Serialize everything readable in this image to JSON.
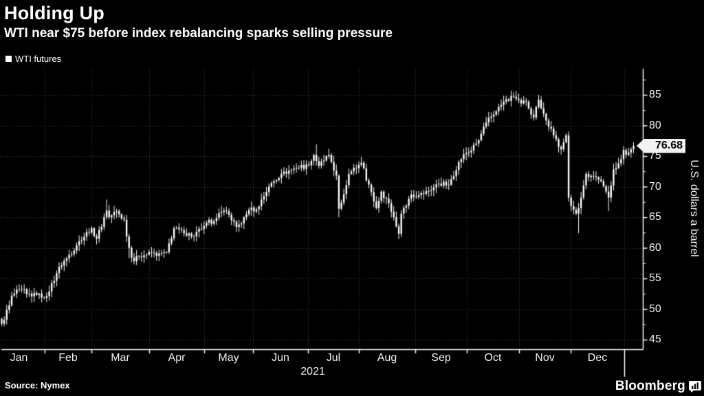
{
  "page": {
    "background": "#000000"
  },
  "header": {
    "title": "Holding Up",
    "subtitle": "WTI near $75 before index rebalancing sparks selling pressure"
  },
  "legend": {
    "items": [
      {
        "label": "WTI futures",
        "swatch_color": "#ffffff"
      }
    ]
  },
  "chart_data": {
    "type": "candlestick",
    "title": "Holding Up",
    "series_name": "WTI futures",
    "ylabel": "U.S. dollars a barrel",
    "xlabel": "2021",
    "x_axis": {
      "months": [
        "Jan",
        "Feb",
        "Mar",
        "Apr",
        "May",
        "Jun",
        "Jul",
        "Aug",
        "Sep",
        "Oct",
        "Nov",
        "Dec"
      ],
      "year_label": "2021"
    },
    "y_axis": {
      "side": "right",
      "ticks": [
        45,
        50,
        55,
        60,
        65,
        70,
        75,
        80,
        85
      ],
      "minor_step": 2.5,
      "ylim": [
        43.4,
        89.3
      ]
    },
    "grid": "dotted",
    "last_price": 76.68,
    "last_price_label": "76.68",
    "colors": {
      "bar": "#ffffff",
      "grid": "#4a4a4a",
      "axis": "#ffffff",
      "background": "#000000",
      "callout_bg": "#f2f2f2",
      "callout_text": "#000000"
    },
    "bar_count": 254,
    "first_open": 48.4,
    "keypoints_trading_day_price": [
      [
        0,
        47.6
      ],
      [
        3,
        50.6
      ],
      [
        4,
        52.2
      ],
      [
        8,
        53.2
      ],
      [
        10,
        52.4
      ],
      [
        14,
        52.3
      ],
      [
        18,
        52.1
      ],
      [
        23,
        56.9
      ],
      [
        26,
        58.3
      ],
      [
        31,
        61.1
      ],
      [
        36,
        63.2
      ],
      [
        38,
        61.5
      ],
      [
        42,
        66.1
      ],
      [
        43,
        65.0
      ],
      [
        46,
        66.0
      ],
      [
        49,
        64.6
      ],
      [
        51,
        60.0
      ],
      [
        53,
        57.8
      ],
      [
        55,
        58.6
      ],
      [
        60,
        59.2
      ],
      [
        62,
        58.7
      ],
      [
        66,
        59.3
      ],
      [
        69,
        63.2
      ],
      [
        73,
        62.4
      ],
      [
        77,
        61.9
      ],
      [
        81,
        63.6
      ],
      [
        86,
        64.9
      ],
      [
        89,
        66.1
      ],
      [
        91,
        65.4
      ],
      [
        94,
        63.4
      ],
      [
        96,
        64.0
      ],
      [
        99,
        66.2
      ],
      [
        102,
        66.3
      ],
      [
        107,
        70.0
      ],
      [
        112,
        72.1
      ],
      [
        118,
        73.1
      ],
      [
        123,
        73.5
      ],
      [
        125,
        75.2
      ],
      [
        127,
        73.4
      ],
      [
        131,
        75.2
      ],
      [
        134,
        71.8
      ],
      [
        135,
        66.4
      ],
      [
        136,
        67.4
      ],
      [
        139,
        72.1
      ],
      [
        144,
        73.9
      ],
      [
        148,
        69.1
      ],
      [
        150,
        66.5
      ],
      [
        152,
        69.2
      ],
      [
        155,
        67.3
      ],
      [
        159,
        62.3
      ],
      [
        160,
        65.6
      ],
      [
        164,
        68.7
      ],
      [
        167,
        68.6
      ],
      [
        171,
        69.3
      ],
      [
        175,
        70.5
      ],
      [
        179,
        70.3
      ],
      [
        183,
        74.0
      ],
      [
        185,
        75.3
      ],
      [
        188,
        75.9
      ],
      [
        191,
        77.6
      ],
      [
        194,
        80.5
      ],
      [
        198,
        82.3
      ],
      [
        201,
        83.9
      ],
      [
        205,
        84.7
      ],
      [
        208,
        83.6
      ],
      [
        210,
        83.9
      ],
      [
        213,
        81.3
      ],
      [
        215,
        84.2
      ],
      [
        218,
        80.8
      ],
      [
        221,
        78.4
      ],
      [
        224,
        76.1
      ],
      [
        226,
        78.4
      ],
      [
        227,
        68.2
      ],
      [
        229,
        66.2
      ],
      [
        230,
        65.6
      ],
      [
        231,
        66.5
      ],
      [
        234,
        72.1
      ],
      [
        237,
        71.7
      ],
      [
        240,
        70.9
      ],
      [
        243,
        68.2
      ],
      [
        245,
        72.8
      ],
      [
        247,
        73.8
      ],
      [
        249,
        76.0
      ],
      [
        250,
        75.2
      ],
      [
        252,
        76.1
      ],
      [
        253,
        76.68
      ]
    ],
    "wick_overrides": {
      "0": {
        "low": 47.2
      },
      "42": {
        "high": 67.9
      },
      "51": {
        "low": 58.3
      },
      "126": {
        "high": 76.9
      },
      "135": {
        "low": 65.0
      },
      "205": {
        "high": 85.4
      },
      "215": {
        "high": 85.0
      },
      "231": {
        "low": 62.4
      },
      "243": {
        "low": 66.0
      }
    }
  },
  "footer": {
    "source": "Source: Nymex",
    "brand": "Bloomberg"
  }
}
